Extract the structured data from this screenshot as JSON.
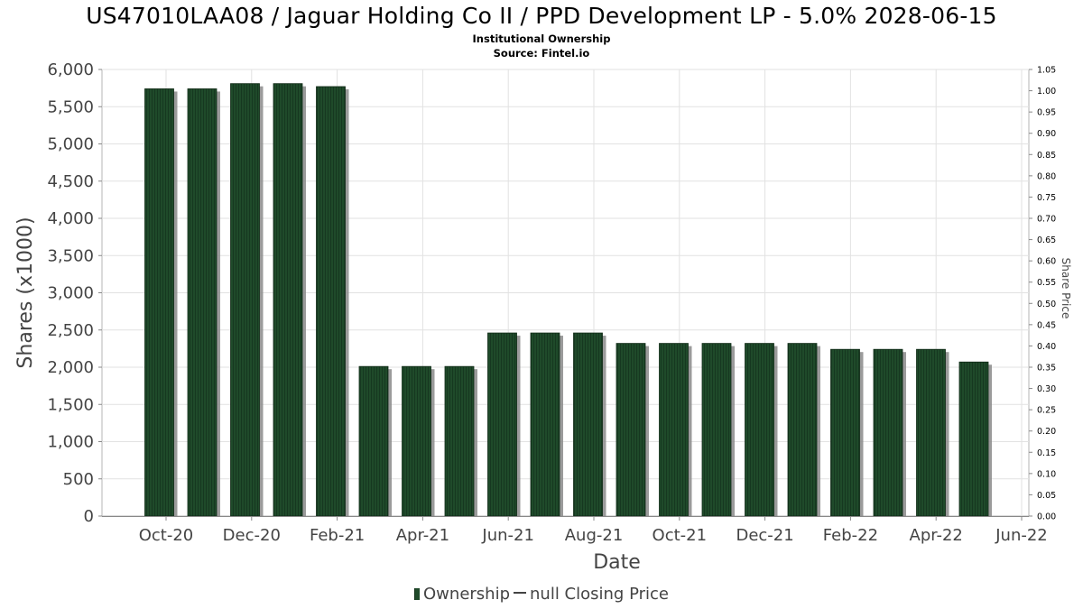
{
  "header": {
    "title": "US47010LAA08 / Jaguar Holding Co II / PPD Development LP - 5.0% 2028-06-15",
    "subtitle": "Institutional Ownership",
    "source": "Source: Fintel.io"
  },
  "legend": {
    "ownership_label": "Ownership",
    "price_label": "null Closing Price"
  },
  "colors": {
    "bar_fill": "#1f4a2a",
    "bar_shadow": "#8a8a8a",
    "grid": "#e2e2e2",
    "axis_text": "#444444"
  },
  "chart_data": {
    "type": "bar",
    "xlabel": "Date",
    "ylabel": "Shares (x1000)",
    "y2label": "Share Price",
    "ylim": [
      0,
      6000
    ],
    "y2lim": [
      0,
      1.05
    ],
    "yticks": [
      "0",
      "500",
      "1,000",
      "1,500",
      "2,000",
      "2,500",
      "3,000",
      "3,500",
      "4,000",
      "4,500",
      "5,000",
      "5,500",
      "6,000"
    ],
    "y2ticks": [
      "0.00",
      "0.05",
      "0.10",
      "0.15",
      "0.20",
      "0.25",
      "0.30",
      "0.35",
      "0.40",
      "0.45",
      "0.50",
      "0.55",
      "0.60",
      "0.65",
      "0.70",
      "0.75",
      "0.80",
      "0.85",
      "0.90",
      "0.95",
      "1.00",
      "1.05"
    ],
    "xticks": [
      "Oct-20",
      "Dec-20",
      "Feb-21",
      "Apr-21",
      "Jun-21",
      "Aug-21",
      "Oct-21",
      "Dec-21",
      "Feb-22",
      "Apr-22",
      "Jun-22"
    ],
    "grid": true,
    "legend_position": "bottom",
    "series": [
      {
        "name": "Ownership",
        "values": [
          5740,
          5740,
          5810,
          5810,
          5770,
          2010,
          2010,
          2010,
          2460,
          2460,
          2460,
          2320,
          2320,
          2320,
          2320,
          2320,
          2240,
          2240,
          2240,
          2070
        ]
      }
    ]
  }
}
